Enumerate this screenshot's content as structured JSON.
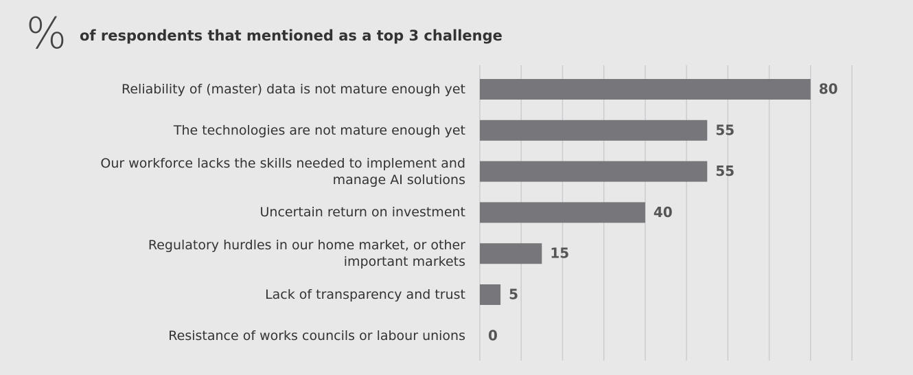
{
  "chart_data": {
    "type": "bar",
    "orientation": "horizontal",
    "unit": "%",
    "title": "of respondents that mentioned as a top 3 challenge",
    "categories": [
      "Reliability of (master) data is not mature enough yet",
      "The technologies are not mature enough yet",
      "Our workforce lacks the skills needed to implement and manage AI solutions",
      "Uncertain return on investment",
      "Regulatory hurdles in our home market, or other important markets",
      "Lack of transparency and trust",
      "Resistance of works councils or labour unions"
    ],
    "values": [
      80,
      55,
      55,
      40,
      15,
      5,
      0
    ],
    "color": "#77777b",
    "xlim": [
      0,
      90
    ],
    "xticks": [
      0,
      10,
      20,
      30,
      40,
      50,
      60,
      70,
      80,
      90
    ],
    "grid": true
  }
}
